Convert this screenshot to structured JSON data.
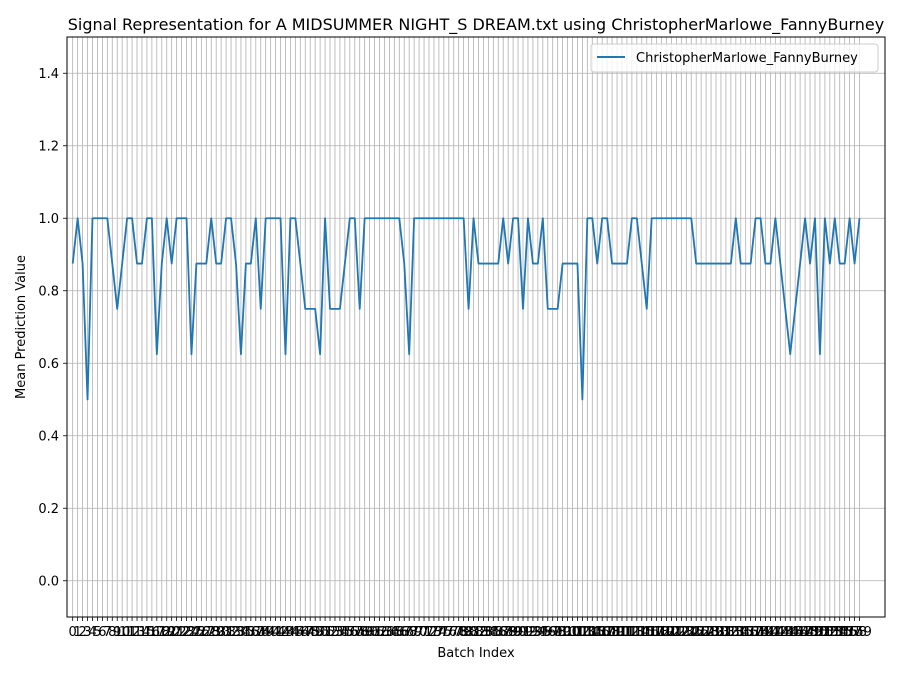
{
  "chart_data": {
    "type": "line",
    "title": "Signal Representation for A MIDSUMMER NIGHT_S DREAM.txt using ChristopherMarlowe_FannyBurney",
    "xlabel": "Batch Index",
    "ylabel": "Mean Prediction Value",
    "ylim": [
      -0.1,
      1.5
    ],
    "yticks": [
      "0.0",
      "0.2",
      "0.4",
      "0.6",
      "0.8",
      "1.0",
      "1.2",
      "1.4"
    ],
    "xlim": [
      -1.15,
      164.15
    ],
    "x_ticks_every_integer": true,
    "grid": true,
    "legend_position": "top-right",
    "series": [
      {
        "name": "ChristopherMarlowe_FannyBurney",
        "color": "#1f77b4",
        "values": [
          0.875,
          1.0,
          0.875,
          0.5,
          1.0,
          1.0,
          1.0,
          1.0,
          0.875,
          0.75,
          0.875,
          1.0,
          1.0,
          0.875,
          0.875,
          1.0,
          1.0,
          0.625,
          0.875,
          1.0,
          0.875,
          1.0,
          1.0,
          1.0,
          0.625,
          0.875,
          0.875,
          0.875,
          1.0,
          0.875,
          0.875,
          1.0,
          1.0,
          0.875,
          0.625,
          0.875,
          0.875,
          1.0,
          0.75,
          1.0,
          1.0,
          1.0,
          1.0,
          0.625,
          1.0,
          1.0,
          0.875,
          0.75,
          0.75,
          0.75,
          0.625,
          1.0,
          0.75,
          0.75,
          0.75,
          0.875,
          1.0,
          1.0,
          0.75,
          1.0,
          1.0,
          1.0,
          1.0,
          1.0,
          1.0,
          1.0,
          1.0,
          0.875,
          0.625,
          1.0,
          1.0,
          1.0,
          1.0,
          1.0,
          1.0,
          1.0,
          1.0,
          1.0,
          1.0,
          1.0,
          0.75,
          1.0,
          0.875,
          0.875,
          0.875,
          0.875,
          0.875,
          1.0,
          0.875,
          1.0,
          1.0,
          0.75,
          1.0,
          0.875,
          0.875,
          1.0,
          0.75,
          0.75,
          0.75,
          0.875,
          0.875,
          0.875,
          0.875,
          0.5,
          1.0,
          1.0,
          0.875,
          1.0,
          1.0,
          0.875,
          0.875,
          0.875,
          0.875,
          1.0,
          1.0,
          0.875,
          0.75,
          1.0,
          1.0,
          1.0,
          1.0,
          1.0,
          1.0,
          1.0,
          1.0,
          1.0,
          0.875,
          0.875,
          0.875,
          0.875,
          0.875,
          0.875,
          0.875,
          0.875,
          1.0,
          0.875,
          0.875,
          0.875,
          1.0,
          1.0,
          0.875,
          0.875,
          1.0,
          0.875,
          0.75,
          0.625,
          0.75,
          0.875,
          1.0,
          0.875,
          1.0,
          0.625,
          1.0,
          0.875,
          1.0,
          0.875,
          0.875,
          1.0,
          0.875,
          1.0
        ]
      }
    ]
  }
}
